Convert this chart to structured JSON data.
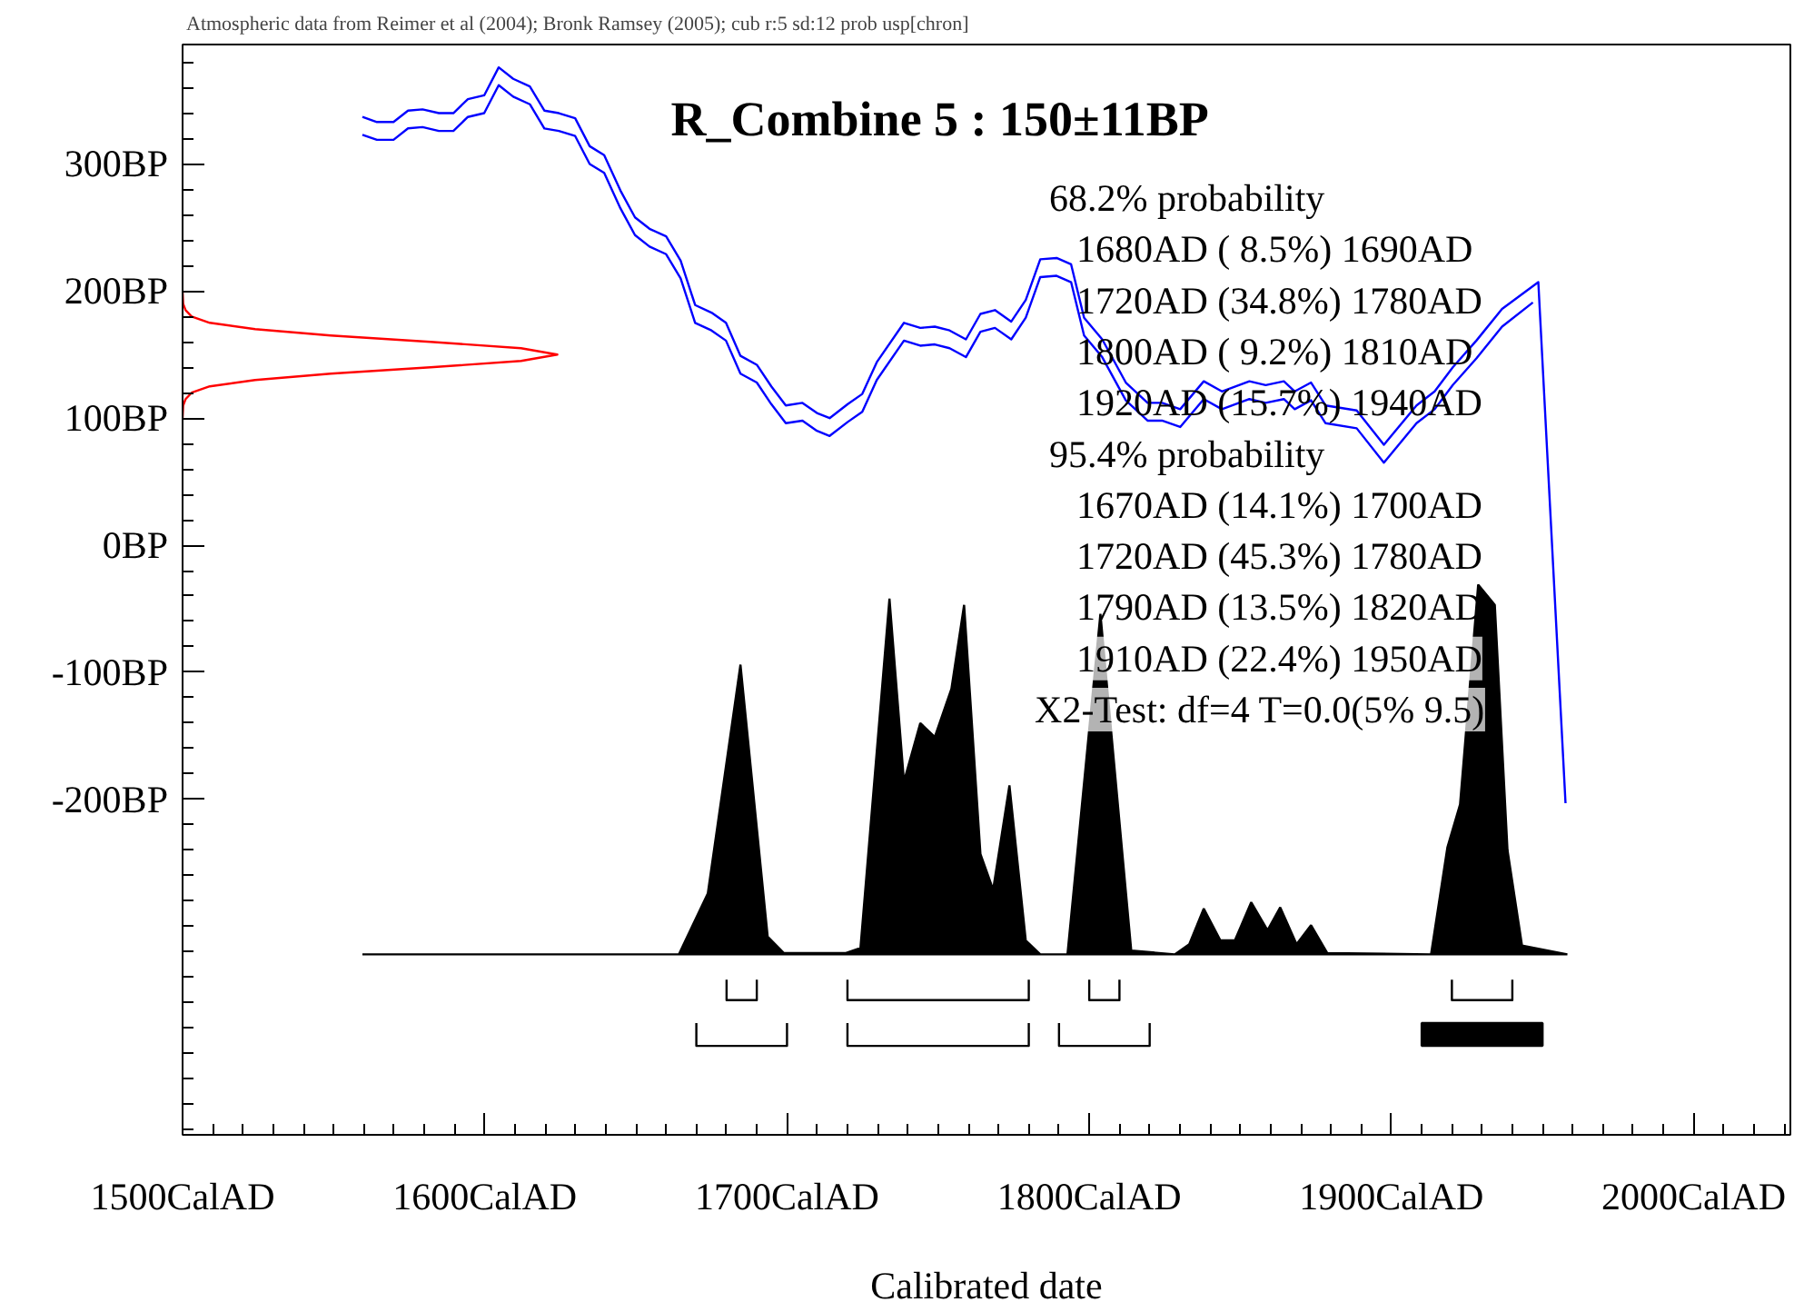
{
  "chart_data": {
    "type": "line",
    "title": "R_Combine 5 : 150±11BP",
    "xlabel": "Calibrated date",
    "xlim": [
      1500,
      2032
    ],
    "ylim": [
      -464,
      394
    ],
    "xticks": [
      {
        "value": 1500,
        "label": "1500CalAD"
      },
      {
        "value": 1600,
        "label": "1600CalAD"
      },
      {
        "value": 1700,
        "label": "1700CalAD"
      },
      {
        "value": 1800,
        "label": "1800CalAD"
      },
      {
        "value": 1900,
        "label": "1900CalAD"
      },
      {
        "value": 2000,
        "label": "2000CalAD"
      }
    ],
    "yticks": [
      {
        "value": -200,
        "label": "-200BP"
      },
      {
        "value": -100,
        "label": "-100BP"
      },
      {
        "value": 0,
        "label": "0BP"
      },
      {
        "value": 100,
        "label": "100BP"
      },
      {
        "value": 200,
        "label": "200BP"
      },
      {
        "value": 300,
        "label": "300BP"
      }
    ],
    "annotations": [
      "Atmospheric data from Reimer et al (2004); Bronk Ramsey (2005); cub r:5 sd:12 prob usp[chron]",
      "68.2% probability",
      "1680AD ( 8.5%) 1690AD",
      "1720AD (34.8%) 1780AD",
      "1800AD ( 9.2%) 1810AD",
      "1920AD (15.7%) 1940AD",
      "95.4% probability",
      "1670AD (14.1%) 1700AD",
      "1720AD (45.3%) 1780AD",
      "1790AD (13.5%) 1820AD",
      "1910AD (22.4%) 1950AD",
      "X2-Test: df=4 T=0.0(5% 9.5)"
    ],
    "series": [
      {
        "color": "#0000ff",
        "x": [
          1559.5,
          1564.3,
          1569.8,
          1574.6,
          1579.4,
          1584.8,
          1589.6,
          1594.4,
          1599.8,
          1604.6,
          1609.4,
          1614.9,
          1619.7,
          1624.5,
          1629.9,
          1634.7,
          1639.5,
          1644.9,
          1649.7,
          1654.5,
          1660,
          1664.8,
          1669.6,
          1675,
          1679.8,
          1684.6,
          1690,
          1694.8,
          1699.6,
          1705.1,
          1709.9,
          1714.1,
          1720.1,
          1724.9,
          1729.7,
          1738.7,
          1744.1,
          1748.9,
          1753.8,
          1759.2,
          1764,
          1768.8,
          1774.2,
          1779,
          1783.8,
          1789.2,
          1794,
          1798.3,
          1804.3,
          1812.1,
          1819.3,
          1824.1,
          1830.1,
          1837.9,
          1843.9,
          1853,
          1858.4,
          1864.4,
          1868,
          1873.4,
          1878.2,
          1888.5,
          1897.5,
          1908.3,
          1914.3,
          1920.3,
          1928.1,
          1936.6,
          1948.6,
          1957.6
        ],
        "values": [
          337,
          333,
          333,
          342,
          343,
          340,
          340,
          351,
          354,
          376,
          367,
          361,
          342,
          340,
          336,
          314,
          307,
          279,
          258,
          249,
          243,
          224,
          189,
          183,
          175,
          149,
          142,
          125,
          110,
          112,
          104,
          100,
          111,
          119,
          144,
          175,
          171,
          172,
          169,
          162,
          182,
          185,
          176,
          193,
          225,
          226,
          221,
          179,
          162,
          128,
          112,
          112,
          107,
          129,
          121,
          129,
          126,
          129,
          121,
          128,
          110,
          106,
          79,
          110,
          121,
          140,
          161,
          186,
          207,
          -203
        ]
      },
      {
        "color": "#0000ff",
        "x": [
          1559.5,
          1564.3,
          1569.8,
          1574.6,
          1579.4,
          1584.8,
          1589.6,
          1594.4,
          1599.8,
          1604.6,
          1609.4,
          1614.9,
          1619.7,
          1624.5,
          1629.9,
          1634.7,
          1639.5,
          1644.9,
          1649.7,
          1654.5,
          1660,
          1664.8,
          1669.6,
          1675,
          1679.8,
          1684.6,
          1690,
          1694.8,
          1699.6,
          1705.1,
          1709.9,
          1714.1,
          1720.1,
          1724.9,
          1729.7,
          1738.7,
          1744.1,
          1748.9,
          1753.8,
          1759.2,
          1764,
          1768.8,
          1774.2,
          1779,
          1783.8,
          1789.2,
          1794,
          1798.3,
          1804.3,
          1812.1,
          1819.3,
          1824.1,
          1830.1,
          1837.9,
          1843.9,
          1853,
          1858.4,
          1864.4,
          1868,
          1873.4,
          1878.2,
          1888.5,
          1897.5,
          1908.3,
          1914.3,
          1920.3,
          1928.1,
          1936.6,
          1946.8
        ],
        "values": [
          323,
          319,
          319,
          328,
          329,
          326,
          326,
          337,
          340,
          362,
          353,
          347,
          328,
          326,
          322,
          300,
          293,
          265,
          244,
          235,
          229,
          210,
          175,
          169,
          161,
          135,
          128,
          111,
          96,
          98,
          90,
          86,
          97,
          105,
          130,
          161,
          157,
          158,
          155,
          148,
          168,
          171,
          162,
          179,
          211,
          212,
          207,
          165,
          148,
          114,
          98,
          98,
          93,
          115,
          107,
          115,
          112,
          115,
          107,
          114,
          96,
          92,
          65,
          96,
          107,
          126,
          147,
          172,
          191
        ]
      },
      {
        "color": "#ff0000",
        "x": [
          1500,
          1500.2,
          1501,
          1503,
          1509,
          1524,
          1549,
          1582,
          1612,
          1624,
          1612,
          1582,
          1549,
          1524,
          1509,
          1503,
          1501,
          1500.2,
          1500
        ],
        "values": [
          200,
          190,
          185,
          180,
          175,
          170,
          165,
          160,
          155,
          150,
          145,
          140,
          135,
          130,
          125,
          120,
          115,
          110,
          100
        ]
      },
      {
        "type": "area",
        "color": "#000000",
        "x": [
          1559.5,
          1664.2,
          1673.8,
          1684.6,
          1693.6,
          1699,
          1719.5,
          1724.3,
          1733.9,
          1738.7,
          1744.1,
          1748.9,
          1754.4,
          1758.6,
          1764,
          1768.2,
          1773.6,
          1779,
          1783.8,
          1792.8,
          1803.7,
          1813.9,
          1828.3,
          1833.1,
          1837.9,
          1843.4,
          1848.2,
          1853.6,
          1859,
          1863.2,
          1868.6,
          1873.4,
          1878.8,
          1913.1,
          1918.5,
          1922.7,
          1928.7,
          1934.2,
          1938.4,
          1943.2,
          1958.2
        ],
        "values": [
          -322,
          -322,
          -274,
          -94,
          -308,
          -321,
          -321,
          -317,
          -42,
          -186,
          -140,
          -151,
          -113,
          -47,
          -243,
          -271,
          -189,
          -311,
          -322,
          -322,
          -54,
          -319,
          -322,
          -314,
          -286,
          -311,
          -311,
          -281,
          -303,
          -285,
          -314,
          -299,
          -321,
          -322,
          -238,
          -204,
          -31,
          -47,
          -240,
          -315,
          -322
        ]
      },
      {
        "color": "#000000",
        "x": [
          1680,
          1680,
          1690,
          1690
        ],
        "values": [
          -342,
          -358,
          -358,
          -342
        ]
      },
      {
        "color": "#000000",
        "x": [
          1720,
          1720,
          1780,
          1780
        ],
        "values": [
          -342,
          -358,
          -358,
          -342
        ]
      },
      {
        "color": "#000000",
        "x": [
          1800,
          1800,
          1810,
          1810
        ],
        "values": [
          -342,
          -358,
          -358,
          -342
        ]
      },
      {
        "color": "#000000",
        "x": [
          1920,
          1920,
          1940,
          1940
        ],
        "values": [
          -342,
          -358,
          -358,
          -342
        ]
      },
      {
        "color": "#000000",
        "x": [
          1670,
          1670,
          1700,
          1700
        ],
        "values": [
          -376,
          -394,
          -394,
          -376
        ]
      },
      {
        "color": "#000000",
        "x": [
          1720,
          1720,
          1780,
          1780
        ],
        "values": [
          -376,
          -394,
          -394,
          -376
        ]
      },
      {
        "color": "#000000",
        "x": [
          1790,
          1790,
          1820,
          1820
        ],
        "values": [
          -376,
          -394,
          -394,
          -376
        ]
      },
      {
        "type": "area",
        "color": "#000000",
        "x": [
          1910,
          1910,
          1950,
          1950
        ],
        "values": [
          -394,
          -376,
          -376,
          -394
        ]
      }
    ]
  }
}
